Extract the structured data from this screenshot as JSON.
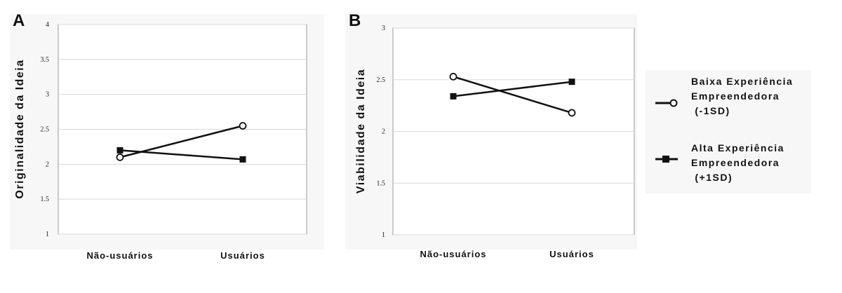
{
  "chart_data": [
    {
      "panel": "A",
      "type": "line",
      "ylabel": "Originalidade da Ideia",
      "xlabel": "",
      "categories": [
        "Não-usuários",
        "Usuários"
      ],
      "ylim": [
        1,
        4
      ],
      "yticks": [
        "1",
        "1.5",
        "2",
        "2.5",
        "3",
        "3.5",
        "4"
      ],
      "grid": true,
      "series": [
        {
          "name": "Baixa Experiência Empreendedora (-1SD)",
          "marker": "open-circle",
          "values": [
            2.1,
            2.55
          ]
        },
        {
          "name": "Alta Experiência Empreendedora (+1SD)",
          "marker": "filled-square",
          "values": [
            2.2,
            2.07
          ]
        }
      ]
    },
    {
      "panel": "B",
      "type": "line",
      "ylabel": "Viabilidade da Ideia",
      "xlabel": "",
      "categories": [
        "Não-usuários",
        "Usuários"
      ],
      "ylim": [
        1,
        3
      ],
      "yticks": [
        "1",
        "1.5",
        "2",
        "2.5",
        "3"
      ],
      "grid": true,
      "series": [
        {
          "name": "Baixa Experiência Empreendedora (-1SD)",
          "marker": "open-circle",
          "values": [
            2.53,
            2.18
          ]
        },
        {
          "name": "Alta Experiência Empreendedora (+1SD)",
          "marker": "filled-square",
          "values": [
            2.34,
            2.48
          ]
        }
      ]
    }
  ],
  "legend": {
    "placement": "right",
    "items": [
      {
        "marker": "open-circle",
        "lines": [
          "Baixa Experiência",
          "Empreendedora",
          " (-1SD)"
        ]
      },
      {
        "marker": "filled-square",
        "lines": [
          "Alta Experiência",
          "Empreendedora",
          " (+1SD)"
        ]
      }
    ]
  },
  "colors": {
    "line": "#111111",
    "grid": "#d9d9d9",
    "frame": "#9a9a9a",
    "marker_fill_open": "#ffffff"
  }
}
